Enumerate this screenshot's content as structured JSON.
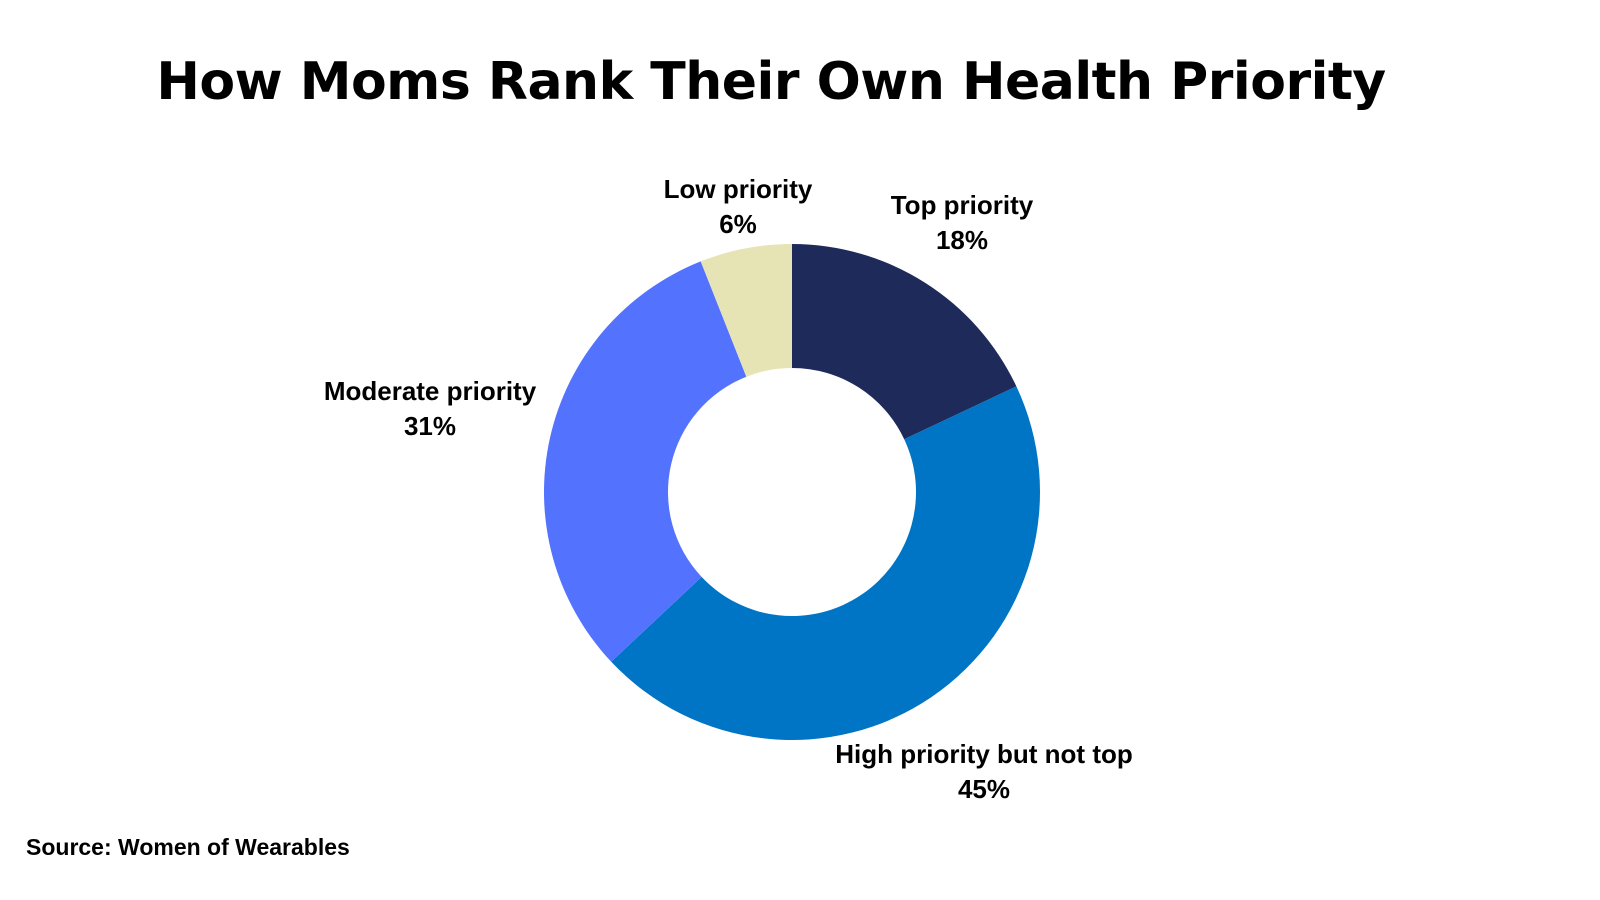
{
  "chart_data": {
    "type": "pie",
    "title": "How Moms Rank Their Own Health Priority",
    "donut": true,
    "categories": [
      "Top priority",
      "High priority but not top",
      "Moderate priority",
      "Low priority"
    ],
    "values": [
      18,
      45,
      31,
      6
    ],
    "value_labels": [
      "18%",
      "45%",
      "31%",
      "6%"
    ],
    "colors": [
      "#1E2A5A",
      "#0075C6",
      "#5373FF",
      "#E6E4B4"
    ],
    "legend": "none"
  },
  "source": "Source: Women of Wearables"
}
